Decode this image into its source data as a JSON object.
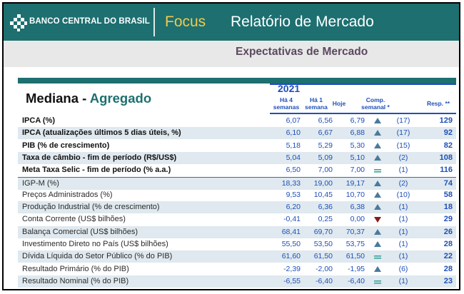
{
  "banner": {
    "brand": "BANCO CENTRAL DO BRASIL",
    "focus": "Focus",
    "report_title": "Relatório de Mercado",
    "color": "#1d6f70"
  },
  "subtitle": "Expectativas de Mercado",
  "table": {
    "title_part1": "Mediana - ",
    "title_part2": "Agregado",
    "year": "2021",
    "columns": {
      "four_weeks_line1": "Há 4",
      "four_weeks_line2": "semanas",
      "one_week_line1": "Há 1",
      "one_week_line2": "semana",
      "today": "Hoje",
      "comp_line1": "Comp.",
      "comp_line2": "semanal *",
      "resp": "Resp. **"
    },
    "rows": [
      {
        "label": "IPCA (%)",
        "four_weeks": "6,07",
        "one_week": "6,56",
        "today": "6,79",
        "trend": "up",
        "count": "(17)",
        "resp": "129",
        "bold": true,
        "shade": false
      },
      {
        "label": "IPCA (atualizações últimos 5 dias úteis, %)",
        "four_weeks": "6,10",
        "one_week": "6,67",
        "today": "6,88",
        "trend": "up",
        "count": "(17)",
        "resp": "92",
        "bold": true,
        "shade": true
      },
      {
        "label": "PIB (% de crescimento)",
        "four_weeks": "5,18",
        "one_week": "5,29",
        "today": "5,30",
        "trend": "up",
        "count": "(15)",
        "resp": "82",
        "bold": true,
        "shade": false
      },
      {
        "label": "Taxa de câmbio - fim de período (R$/US$)",
        "four_weeks": "5,04",
        "one_week": "5,09",
        "today": "5,10",
        "trend": "up",
        "count": "(2)",
        "resp": "108",
        "bold": true,
        "shade": true
      },
      {
        "label": "Meta Taxa Selic - fim de período (% a.a.)",
        "four_weeks": "6,50",
        "one_week": "7,00",
        "today": "7,00",
        "trend": "equal",
        "count": "(1)",
        "resp": "116",
        "bold": true,
        "shade": false
      },
      {
        "label": "IGP-M (%)",
        "four_weeks": "18,33",
        "one_week": "19,00",
        "today": "19,17",
        "trend": "up",
        "count": "(2)",
        "resp": "74",
        "bold": false,
        "shade": true
      },
      {
        "label": "Preços Administrados (%)",
        "four_weeks": "9,53",
        "one_week": "10,45",
        "today": "10,70",
        "trend": "up",
        "count": "(10)",
        "resp": "58",
        "bold": false,
        "shade": false
      },
      {
        "label": "Produção Industrial (% de crescimento)",
        "four_weeks": "6,20",
        "one_week": "6,36",
        "today": "6,38",
        "trend": "up",
        "count": "(1)",
        "resp": "18",
        "bold": false,
        "shade": true
      },
      {
        "label": "Conta Corrente (US$ bilhões)",
        "four_weeks": "-0,41",
        "one_week": "0,25",
        "today": "0,00",
        "trend": "down",
        "count": "(1)",
        "resp": "29",
        "bold": false,
        "shade": false
      },
      {
        "label": "Balança Comercial (US$ bilhões)",
        "four_weeks": "68,41",
        "one_week": "69,70",
        "today": "70,37",
        "trend": "up",
        "count": "(1)",
        "resp": "26",
        "bold": false,
        "shade": true
      },
      {
        "label": "Investimento Direto no País (US$ bilhões)",
        "four_weeks": "55,50",
        "one_week": "53,50",
        "today": "53,75",
        "trend": "up",
        "count": "(1)",
        "resp": "28",
        "bold": false,
        "shade": false
      },
      {
        "label": "Dívida Líquida do Setor Público (% do PIB)",
        "four_weeks": "61,60",
        "one_week": "61,50",
        "today": "61,50",
        "trend": "equal",
        "count": "(1)",
        "resp": "22",
        "bold": false,
        "shade": true
      },
      {
        "label": "Resultado Primário (% do PIB)",
        "four_weeks": "-2,39",
        "one_week": "-2,00",
        "today": "-1,95",
        "trend": "up",
        "count": "(6)",
        "resp": "28",
        "bold": false,
        "shade": false
      },
      {
        "label": "Resultado Nominal (% do PIB)",
        "four_weeks": "-6,55",
        "one_week": "-6,40",
        "today": "-6,40",
        "trend": "equal",
        "count": "(1)",
        "resp": "23",
        "bold": false,
        "shade": true
      }
    ]
  },
  "colors": {
    "teal": "#1d6f70",
    "blue_text": "#1f4fb8",
    "up_arrow": "#4a7a9c",
    "down_arrow": "#8b1a1a",
    "equal": "#3aa39a",
    "row_shade": "#dfe9ef"
  }
}
